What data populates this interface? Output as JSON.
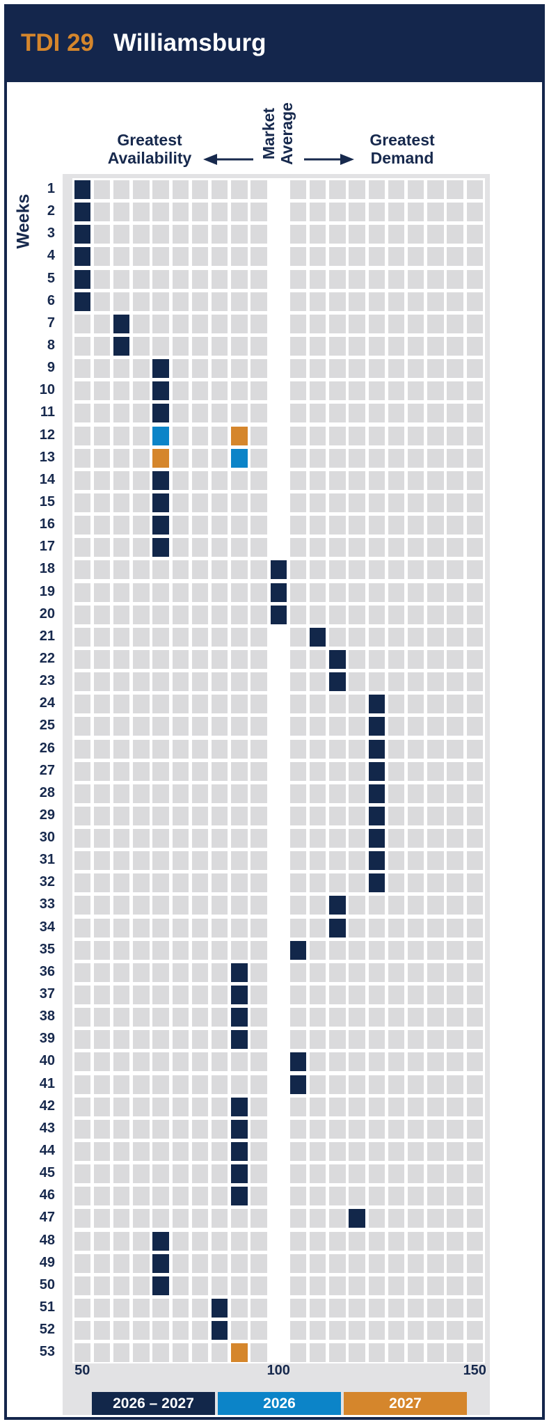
{
  "page": {
    "title": {
      "code": "TDI 29",
      "market": "Williamsburg"
    },
    "axis_header": {
      "left_line1": "Greatest",
      "left_line2": "Availability",
      "center_line1": "Market",
      "center_line2": "Average",
      "right_line1": "Greatest",
      "right_line2": "Demand"
    },
    "ylabel": "Weeks"
  },
  "colors": {
    "header_navy": "#14264c",
    "text_navy": "#17294d",
    "cell_gray": "#dadadc",
    "panel_gray": "#e2e2e4",
    "series_navy": "#12274a",
    "series_blue": "#0c84c8",
    "series_orange": "#d5862c"
  },
  "chart_data": {
    "type": "heatmap",
    "title": "TDI 29 Williamsburg",
    "ylabel": "Weeks",
    "xlim": [
      50,
      150
    ],
    "x_ticks": [
      50,
      100,
      150
    ],
    "cell_value_step": 5,
    "market_average_value": 100,
    "grid": {
      "rows": 53,
      "columns": 21,
      "market_average_column": 11
    },
    "legend_position": "bottom",
    "legend": [
      {
        "label": "2026 – 2027",
        "color": "#12274a"
      },
      {
        "label": "2026",
        "color": "#0c84c8"
      },
      {
        "label": "2027",
        "color": "#d5862c"
      }
    ],
    "weeks": [
      {
        "week": 1,
        "marks": [
          {
            "value": 50,
            "s": 0
          }
        ]
      },
      {
        "week": 2,
        "marks": [
          {
            "value": 50,
            "s": 0
          }
        ]
      },
      {
        "week": 3,
        "marks": [
          {
            "value": 50,
            "s": 0
          }
        ]
      },
      {
        "week": 4,
        "marks": [
          {
            "value": 50,
            "s": 0
          }
        ]
      },
      {
        "week": 5,
        "marks": [
          {
            "value": 50,
            "s": 0
          }
        ]
      },
      {
        "week": 6,
        "marks": [
          {
            "value": 50,
            "s": 0
          }
        ]
      },
      {
        "week": 7,
        "marks": [
          {
            "value": 60,
            "s": 0
          }
        ]
      },
      {
        "week": 8,
        "marks": [
          {
            "value": 60,
            "s": 0
          }
        ]
      },
      {
        "week": 9,
        "marks": [
          {
            "value": 70,
            "s": 0
          }
        ]
      },
      {
        "week": 10,
        "marks": [
          {
            "value": 70,
            "s": 0
          }
        ]
      },
      {
        "week": 11,
        "marks": [
          {
            "value": 70,
            "s": 0
          }
        ]
      },
      {
        "week": 12,
        "marks": [
          {
            "value": 70,
            "s": 1
          },
          {
            "value": 90,
            "s": 2
          }
        ]
      },
      {
        "week": 13,
        "marks": [
          {
            "value": 70,
            "s": 2
          },
          {
            "value": 90,
            "s": 1
          }
        ]
      },
      {
        "week": 14,
        "marks": [
          {
            "value": 70,
            "s": 0
          }
        ]
      },
      {
        "week": 15,
        "marks": [
          {
            "value": 70,
            "s": 0
          }
        ]
      },
      {
        "week": 16,
        "marks": [
          {
            "value": 70,
            "s": 0
          }
        ]
      },
      {
        "week": 17,
        "marks": [
          {
            "value": 70,
            "s": 0
          }
        ]
      },
      {
        "week": 18,
        "marks": [
          {
            "value": 100,
            "s": 0
          }
        ]
      },
      {
        "week": 19,
        "marks": [
          {
            "value": 100,
            "s": 0
          }
        ]
      },
      {
        "week": 20,
        "marks": [
          {
            "value": 100,
            "s": 0
          }
        ]
      },
      {
        "week": 21,
        "marks": [
          {
            "value": 110,
            "s": 0
          }
        ]
      },
      {
        "week": 22,
        "marks": [
          {
            "value": 115,
            "s": 0
          }
        ]
      },
      {
        "week": 23,
        "marks": [
          {
            "value": 115,
            "s": 0
          }
        ]
      },
      {
        "week": 24,
        "marks": [
          {
            "value": 125,
            "s": 0
          }
        ]
      },
      {
        "week": 25,
        "marks": [
          {
            "value": 125,
            "s": 0
          }
        ]
      },
      {
        "week": 26,
        "marks": [
          {
            "value": 125,
            "s": 0
          }
        ]
      },
      {
        "week": 27,
        "marks": [
          {
            "value": 125,
            "s": 0
          }
        ]
      },
      {
        "week": 28,
        "marks": [
          {
            "value": 125,
            "s": 0
          }
        ]
      },
      {
        "week": 29,
        "marks": [
          {
            "value": 125,
            "s": 0
          }
        ]
      },
      {
        "week": 30,
        "marks": [
          {
            "value": 125,
            "s": 0
          }
        ]
      },
      {
        "week": 31,
        "marks": [
          {
            "value": 125,
            "s": 0
          }
        ]
      },
      {
        "week": 32,
        "marks": [
          {
            "value": 125,
            "s": 0
          }
        ]
      },
      {
        "week": 33,
        "marks": [
          {
            "value": 115,
            "s": 0
          }
        ]
      },
      {
        "week": 34,
        "marks": [
          {
            "value": 115,
            "s": 0
          }
        ]
      },
      {
        "week": 35,
        "marks": [
          {
            "value": 105,
            "s": 0
          }
        ]
      },
      {
        "week": 36,
        "marks": [
          {
            "value": 90,
            "s": 0
          }
        ]
      },
      {
        "week": 37,
        "marks": [
          {
            "value": 90,
            "s": 0
          }
        ]
      },
      {
        "week": 38,
        "marks": [
          {
            "value": 90,
            "s": 0
          }
        ]
      },
      {
        "week": 39,
        "marks": [
          {
            "value": 90,
            "s": 0
          }
        ]
      },
      {
        "week": 40,
        "marks": [
          {
            "value": 105,
            "s": 0
          }
        ]
      },
      {
        "week": 41,
        "marks": [
          {
            "value": 105,
            "s": 0
          }
        ]
      },
      {
        "week": 42,
        "marks": [
          {
            "value": 90,
            "s": 0
          }
        ]
      },
      {
        "week": 43,
        "marks": [
          {
            "value": 90,
            "s": 0
          }
        ]
      },
      {
        "week": 44,
        "marks": [
          {
            "value": 90,
            "s": 0
          }
        ]
      },
      {
        "week": 45,
        "marks": [
          {
            "value": 90,
            "s": 0
          }
        ]
      },
      {
        "week": 46,
        "marks": [
          {
            "value": 90,
            "s": 0
          }
        ]
      },
      {
        "week": 47,
        "marks": [
          {
            "value": 120,
            "s": 0
          }
        ]
      },
      {
        "week": 48,
        "marks": [
          {
            "value": 70,
            "s": 0
          }
        ]
      },
      {
        "week": 49,
        "marks": [
          {
            "value": 70,
            "s": 0
          }
        ]
      },
      {
        "week": 50,
        "marks": [
          {
            "value": 70,
            "s": 0
          }
        ]
      },
      {
        "week": 51,
        "marks": [
          {
            "value": 85,
            "s": 0
          }
        ]
      },
      {
        "week": 52,
        "marks": [
          {
            "value": 85,
            "s": 0
          }
        ]
      },
      {
        "week": 53,
        "marks": [
          {
            "value": 90,
            "s": 2
          }
        ]
      }
    ]
  }
}
